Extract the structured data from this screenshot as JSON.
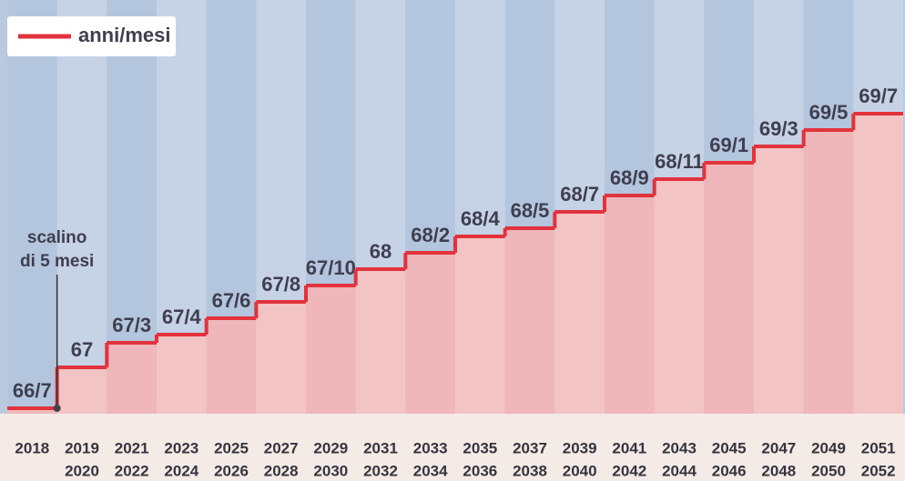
{
  "chart_data": {
    "type": "step",
    "legend": "anni/mesi",
    "color": "#e2323c",
    "categories": [
      [
        "2018"
      ],
      [
        "2019",
        "2020"
      ],
      [
        "2021",
        "2022"
      ],
      [
        "2023",
        "2024"
      ],
      [
        "2025",
        "2026"
      ],
      [
        "2027",
        "2028"
      ],
      [
        "2029",
        "2030"
      ],
      [
        "2031",
        "2032"
      ],
      [
        "2033",
        "2034"
      ],
      [
        "2035",
        "2036"
      ],
      [
        "2037",
        "2038"
      ],
      [
        "2039",
        "2040"
      ],
      [
        "2041",
        "2042"
      ],
      [
        "2043",
        "2044"
      ],
      [
        "2045",
        "2046"
      ],
      [
        "2047",
        "2048"
      ],
      [
        "2049",
        "2050"
      ],
      [
        "2051",
        "2052"
      ]
    ],
    "values": [
      799,
      804,
      807,
      808,
      810,
      812,
      814,
      816,
      818,
      820,
      821,
      823,
      825,
      827,
      829,
      831,
      833,
      835
    ],
    "value_labels": [
      "66/7",
      "67",
      "67/3",
      "67/4",
      "67/6",
      "67/8",
      "67/10",
      "68",
      "68/2",
      "68/4",
      "68/5",
      "68/7",
      "68/9",
      "68/11",
      "69/1",
      "69/3",
      "69/5",
      "69/7"
    ],
    "annotation": {
      "lines": [
        "scalino",
        "di 5 mesi"
      ],
      "index": 1
    }
  }
}
